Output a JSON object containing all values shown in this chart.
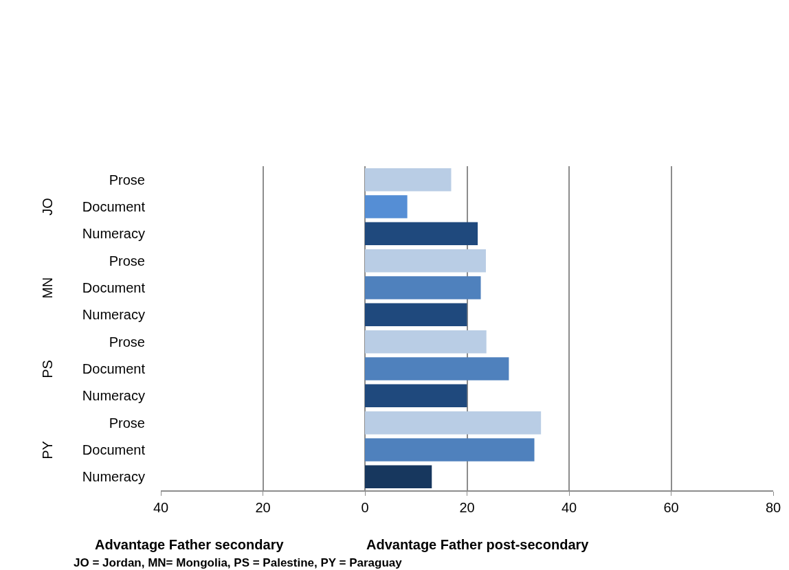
{
  "chart_data": {
    "type": "bar",
    "orientation": "horizontal",
    "categories": [
      "Prose",
      "Document",
      "Numeracy",
      "Prose",
      "Document",
      "Numeracy",
      "Prose",
      "Document",
      "Numeracy",
      "Prose",
      "Document",
      "Numeracy"
    ],
    "values": [
      16.9,
      8.3,
      22.1,
      23.7,
      22.7,
      20.0,
      23.8,
      28.2,
      20.0,
      34.5,
      33.2,
      13.1
    ],
    "colors": [
      "#b9cde5",
      "#558ed5",
      "#1f497d",
      "#b9cde5",
      "#4f81bd",
      "#1f497d",
      "#b9cde5",
      "#4f81bd",
      "#1f497d",
      "#b9cde5",
      "#4f81bd",
      "#17375e"
    ],
    "xlim": [
      -40,
      80
    ],
    "xticks": [
      {
        "value": -40,
        "label": "40"
      },
      {
        "value": -20,
        "label": "20"
      },
      0,
      20,
      40,
      60,
      80
    ],
    "grid": "x",
    "annotations": [
      "JO",
      "MN",
      "PS",
      "PY",
      "Advantage Father secondary",
      "Advantage Father post-secondary",
      "JO = Jordan, MN= Mongolia, PS = Palestine, PY = Paraguay"
    ]
  }
}
